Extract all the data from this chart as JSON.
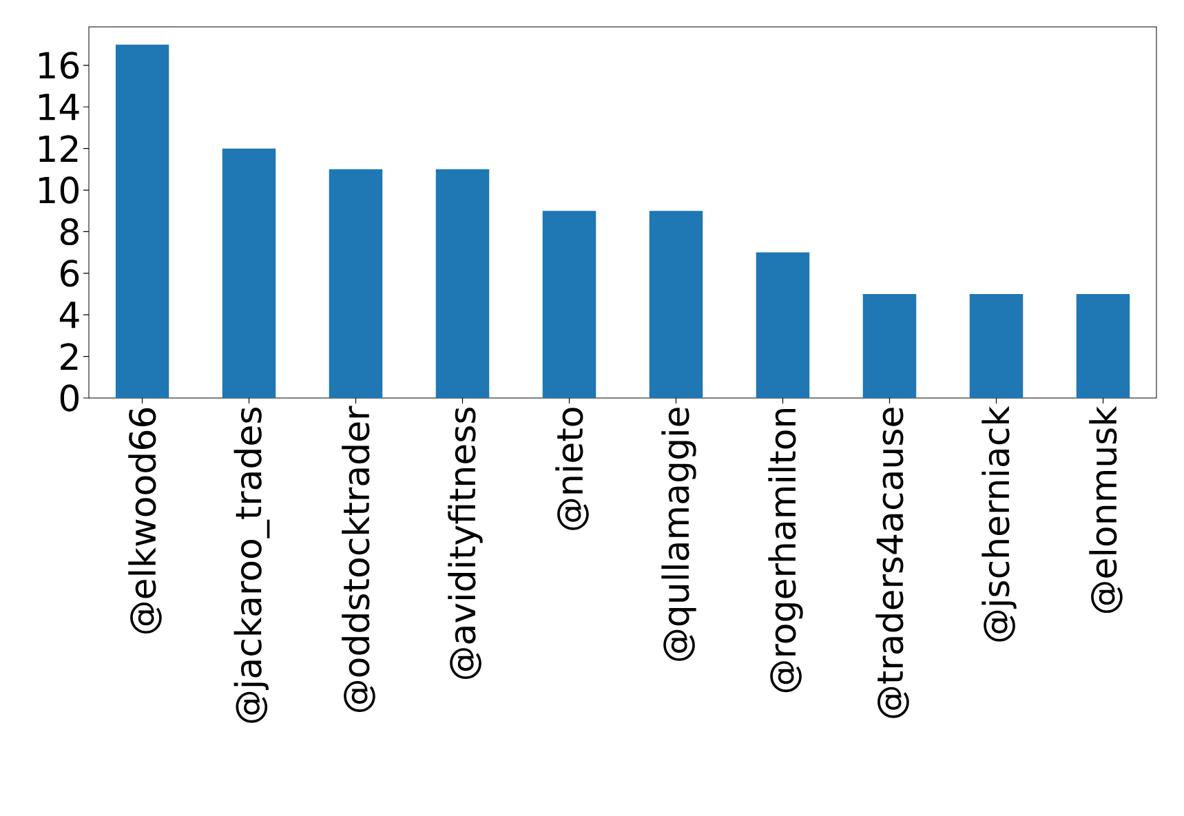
{
  "chart_data": {
    "type": "bar",
    "categories": [
      "@elkwood66",
      "@jackaroo_trades",
      "@oddstocktrader",
      "@avidityfitness",
      "@nieto",
      "@qullamaggie",
      "@rogerhamilton",
      "@traders4acause",
      "@jscherniack",
      "@elonmusk"
    ],
    "values": [
      17,
      12,
      11,
      11,
      9,
      9,
      7,
      5,
      5,
      5
    ],
    "color": "#1f77b4",
    "ylim": [
      0,
      17.85
    ],
    "yticks": [
      0,
      2,
      4,
      6,
      8,
      10,
      12,
      14,
      16
    ],
    "grid": false
  }
}
